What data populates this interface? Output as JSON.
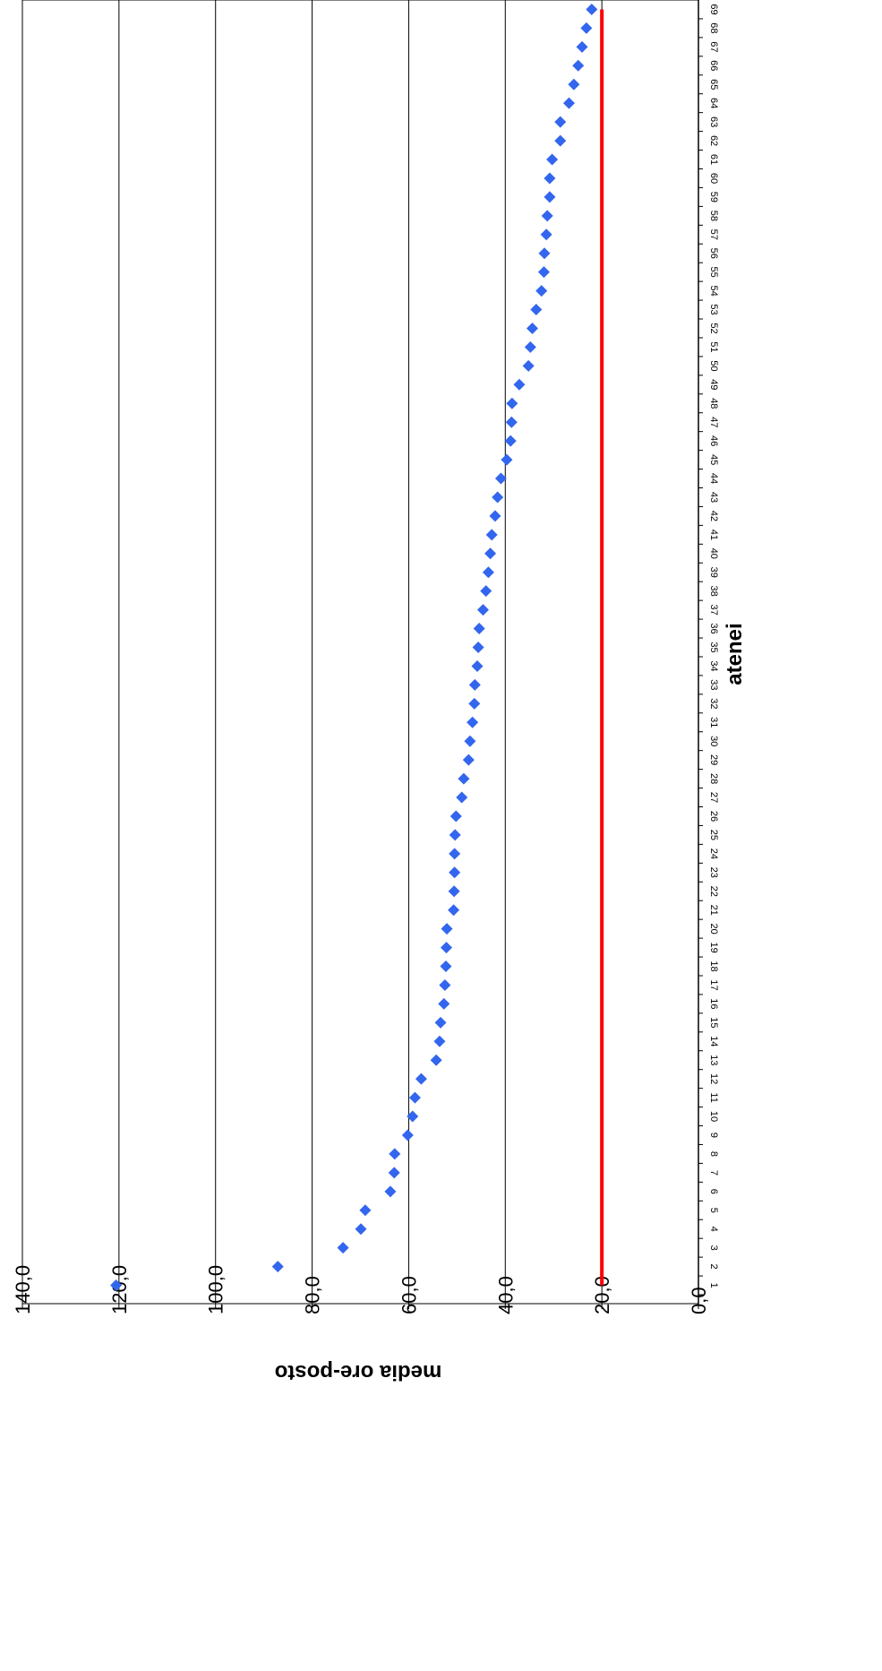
{
  "chart_data": {
    "type": "scatter",
    "xlabel": "atenei",
    "ylabel": "media ore-posto",
    "ylim": [
      0,
      140
    ],
    "yticks": [
      "0,0",
      "20,0",
      "40,0",
      "60,0",
      "80,0",
      "100,0",
      "120,0",
      "140,0"
    ],
    "grid": true,
    "rotated": "chart is displayed rotated 90 degrees clockwise",
    "x": [
      1,
      2,
      3,
      4,
      5,
      6,
      7,
      8,
      9,
      10,
      11,
      12,
      13,
      14,
      15,
      16,
      17,
      18,
      19,
      20,
      21,
      22,
      23,
      24,
      25,
      26,
      27,
      28,
      29,
      30,
      31,
      32,
      33,
      34,
      35,
      36,
      37,
      38,
      39,
      40,
      41,
      42,
      43,
      44,
      45,
      46,
      47,
      48,
      49,
      50,
      51,
      52,
      53,
      54,
      55,
      56,
      57,
      58,
      59,
      60,
      61,
      62,
      63,
      64,
      65,
      66,
      67,
      68,
      69
    ],
    "series": [
      {
        "marker": "diamond",
        "color": "#3366ee",
        "values": [
          120.6,
          87.1,
          73.6,
          69.9,
          69.0,
          63.8,
          63.0,
          62.9,
          60.2,
          59.2,
          58.7,
          57.4,
          54.3,
          53.6,
          53.4,
          52.7,
          52.5,
          52.3,
          52.2,
          52.1,
          50.7,
          50.6,
          50.5,
          50.5,
          50.4,
          50.2,
          49.0,
          48.6,
          47.6,
          47.3,
          46.8,
          46.4,
          46.3,
          45.8,
          45.6,
          45.4,
          44.6,
          44.0,
          43.5,
          43.1,
          42.8,
          42.1,
          41.6,
          40.9,
          39.7,
          38.9,
          38.7,
          38.6,
          37.1,
          35.2,
          34.8,
          34.4,
          33.6,
          32.5,
          32.0,
          31.9,
          31.5,
          31.3,
          30.8,
          30.8,
          30.3,
          28.6,
          28.6,
          26.8,
          25.8,
          24.9,
          24.1,
          23.2,
          22.1
        ]
      },
      {
        "type": "line",
        "color": "#ff0000",
        "value": 20.0
      }
    ]
  }
}
